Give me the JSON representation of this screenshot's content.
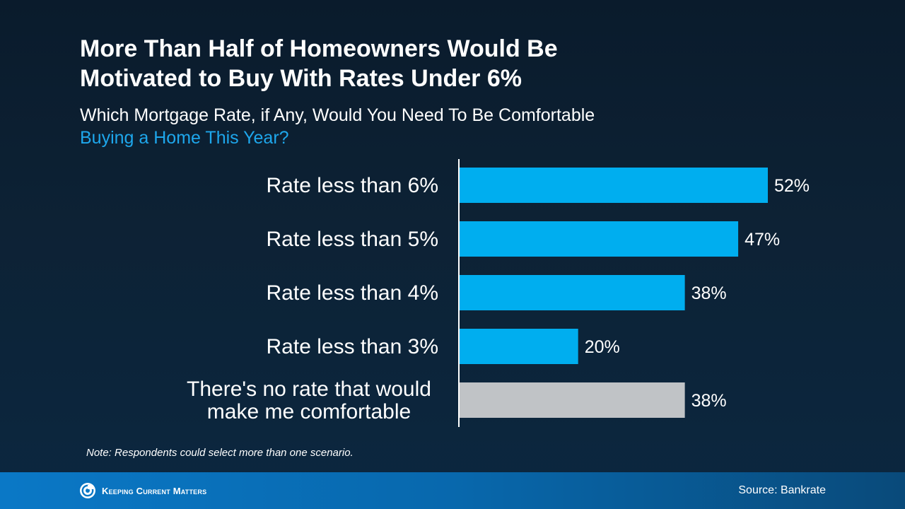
{
  "title_line1": "More Than Half of Homeowners Would Be",
  "title_line2": "Motivated to Buy With Rates Under 6%",
  "subtitle_line1": "Which Mortgage Rate, if Any, Would You Need To Be Comfortable",
  "subtitle_line2": "Buying a Home This Year?",
  "note": "Note: Respondents could select more than one scenario.",
  "source": "Source: Bankrate",
  "brand": "Keeping Current Matters",
  "colors": {
    "bar": "#00aeef",
    "bar_neutral": "#c0c3c6",
    "accent": "#1ea7ec",
    "footer": "#0a78c6"
  },
  "chart_data": {
    "type": "bar",
    "orientation": "horizontal",
    "categories": [
      [
        "Rate less than 6%"
      ],
      [
        "Rate less than 5%"
      ],
      [
        "Rate less than 4%"
      ],
      [
        "Rate less than 3%"
      ],
      [
        "There's no rate that would",
        "make me comfortable"
      ]
    ],
    "values": [
      52,
      47,
      38,
      20,
      38
    ],
    "value_labels": [
      "52%",
      "47%",
      "38%",
      "20%",
      "38%"
    ],
    "bar_colors": [
      "#00aeef",
      "#00aeef",
      "#00aeef",
      "#00aeef",
      "#c0c3c6"
    ],
    "xlim": [
      0,
      100
    ],
    "grid": false,
    "legend": "none"
  }
}
